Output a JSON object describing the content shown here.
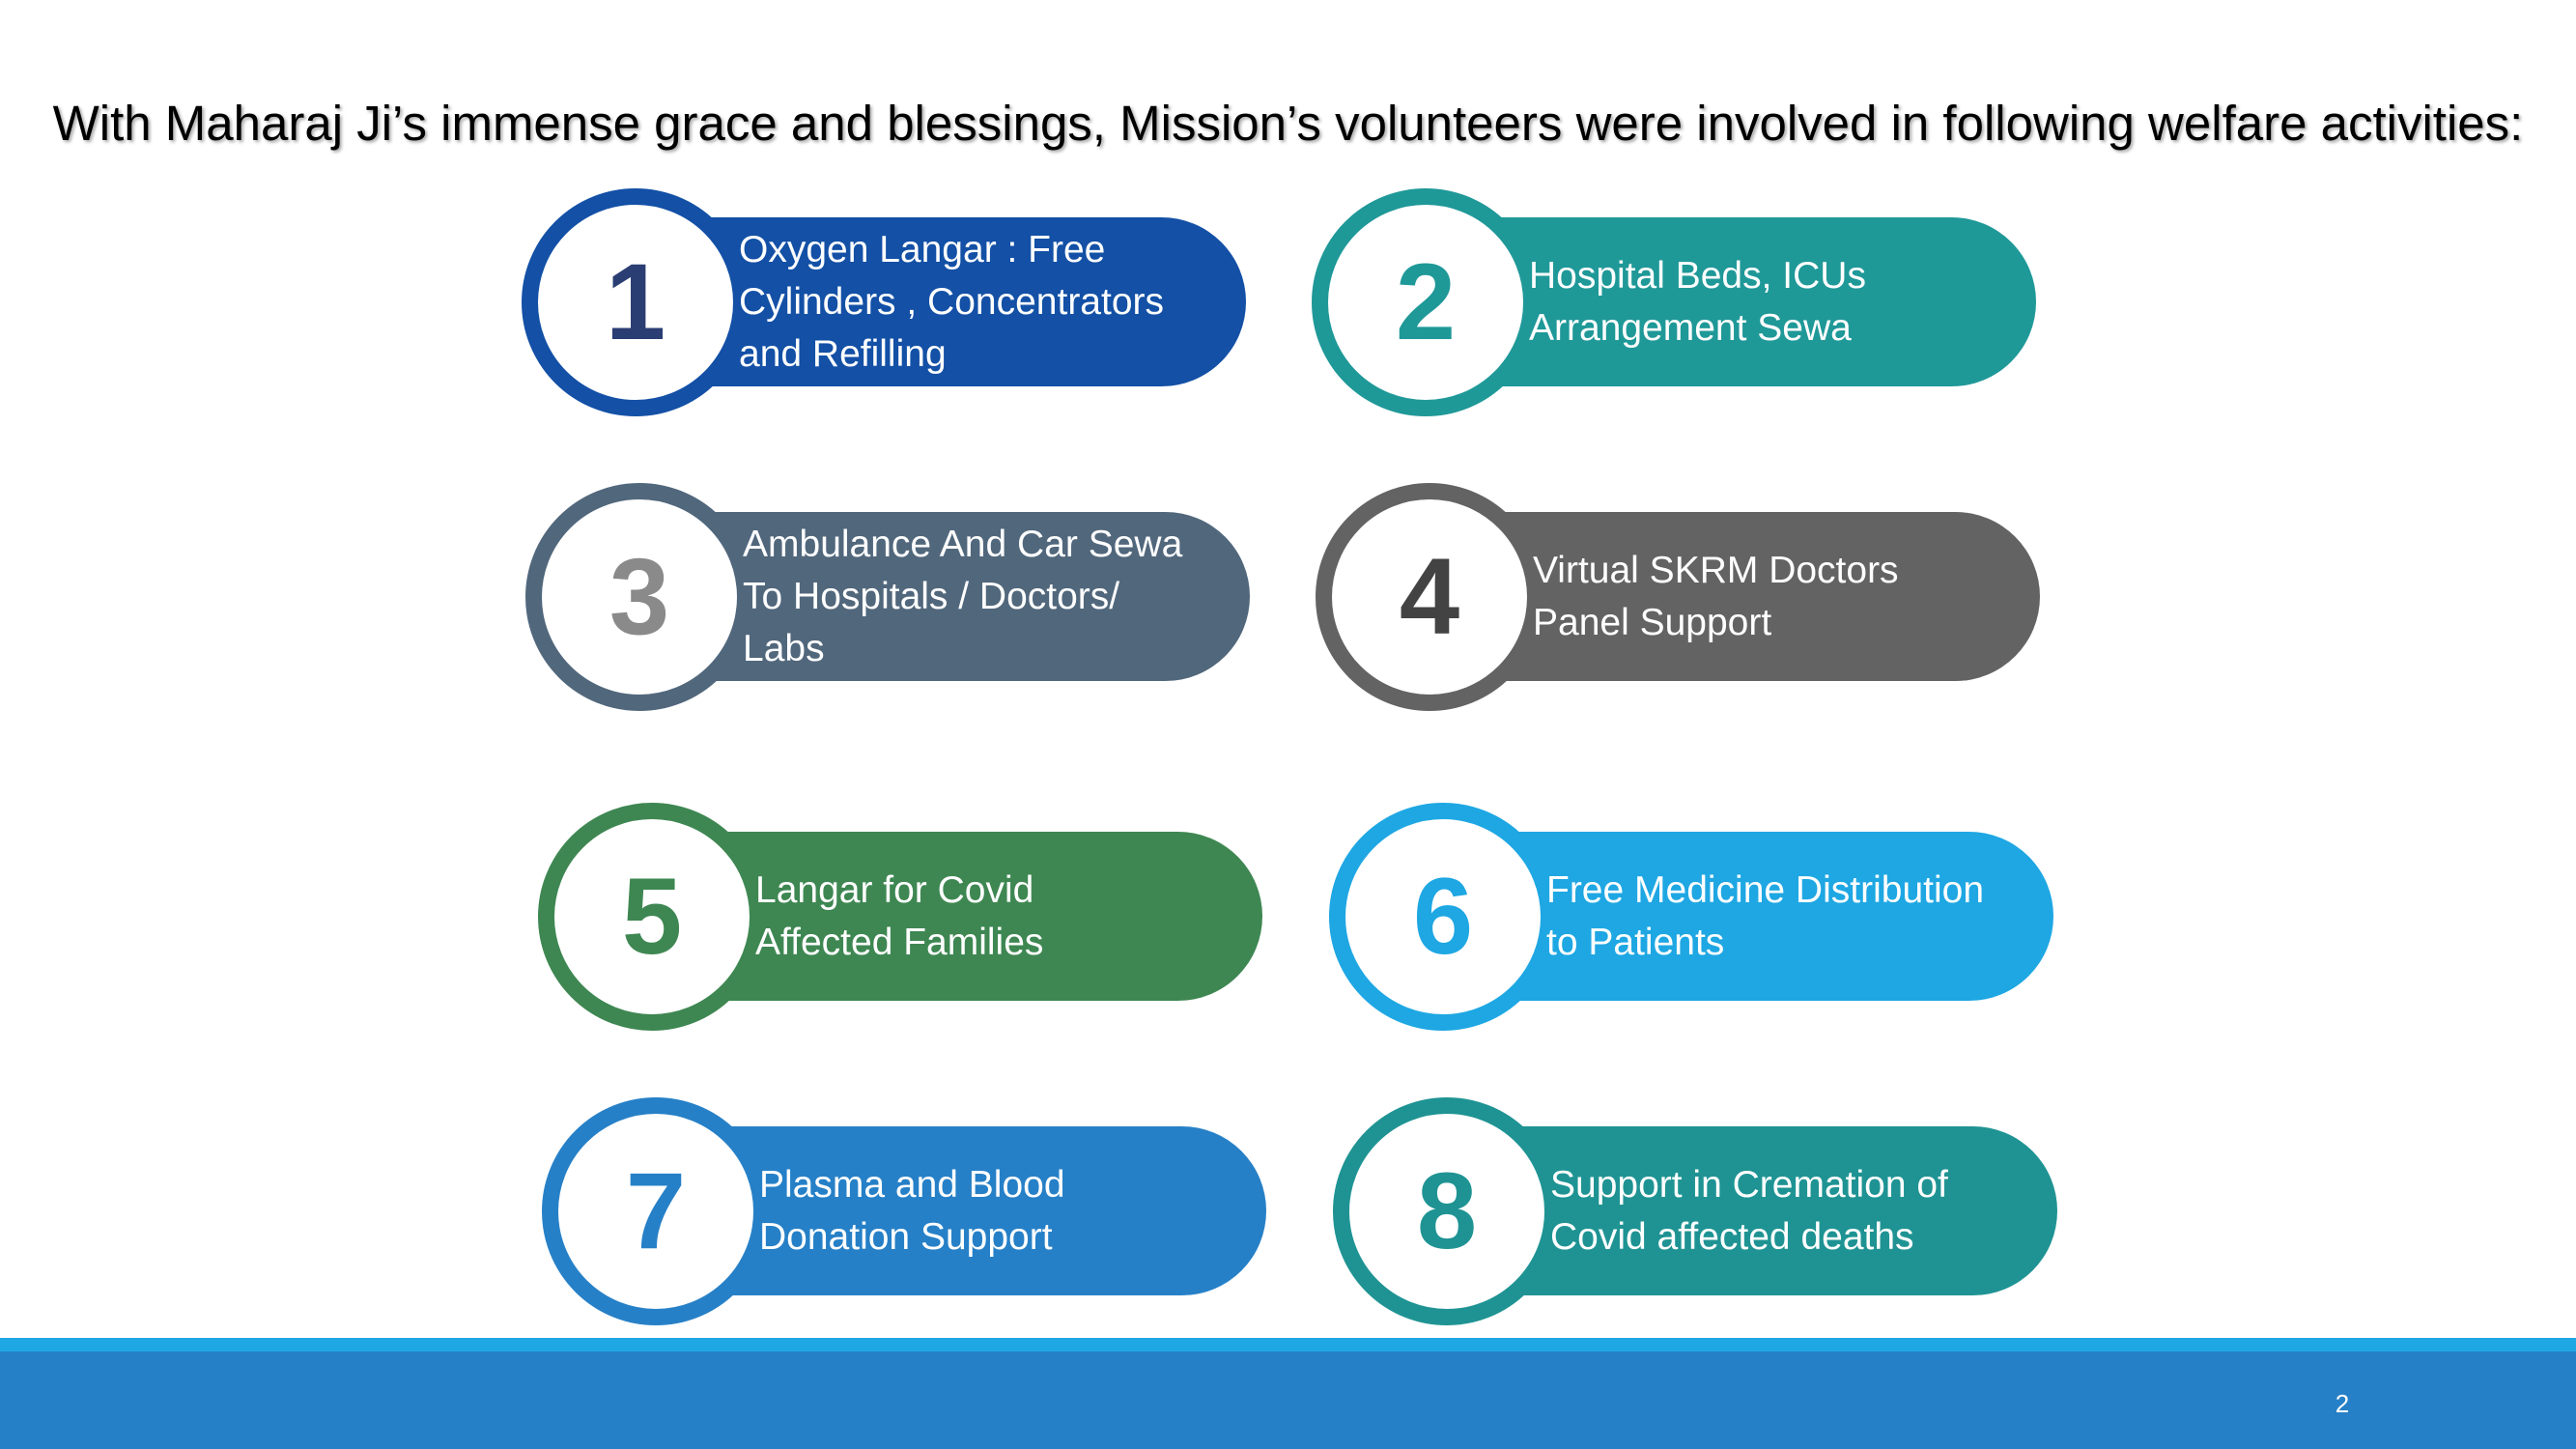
{
  "title": "With Maharaj Ji’s immense grace and blessings, Mission’s volunteers were involved in following welfare activities:",
  "items": [
    {
      "number": "1",
      "text": "Oxygen Langar : Free\nCylinders , Concentrators\nand Refilling",
      "color": "#1350a6",
      "num_color": "#2b3e73"
    },
    {
      "number": "2",
      "text": "Hospital Beds, ICUs\nArrangement Sewa",
      "color": "#1f9898",
      "num_color": "#1f9898"
    },
    {
      "number": "3",
      "text": "Ambulance And Car Sewa\nTo Hospitals / Doctors/\nLabs",
      "color": "#51677c",
      "num_color": "#8a8a8a"
    },
    {
      "number": "4",
      "text": "Virtual SKRM Doctors\nPanel Support",
      "color": "#636363",
      "num_color": "#434343"
    },
    {
      "number": "5",
      "text": "Langar for Covid\nAffected Families",
      "color": "#3e8752",
      "num_color": "#3e8752"
    },
    {
      "number": "6",
      "text": "Free Medicine Distribution\nto Patients",
      "color": "#1ea7e3",
      "num_color": "#1ea7e3"
    },
    {
      "number": "7",
      "text": "Plasma and Blood\nDonation Support",
      "color": "#2680c7",
      "num_color": "#2680c7"
    },
    {
      "number": "8",
      "text": "Support in Cremation of\nCovid affected deaths",
      "color": "#1f9393",
      "num_color": "#1f9393"
    }
  ],
  "footer": {
    "page_number": "2",
    "band_light": "#1ea7e3",
    "band_dark": "#2680c7"
  }
}
